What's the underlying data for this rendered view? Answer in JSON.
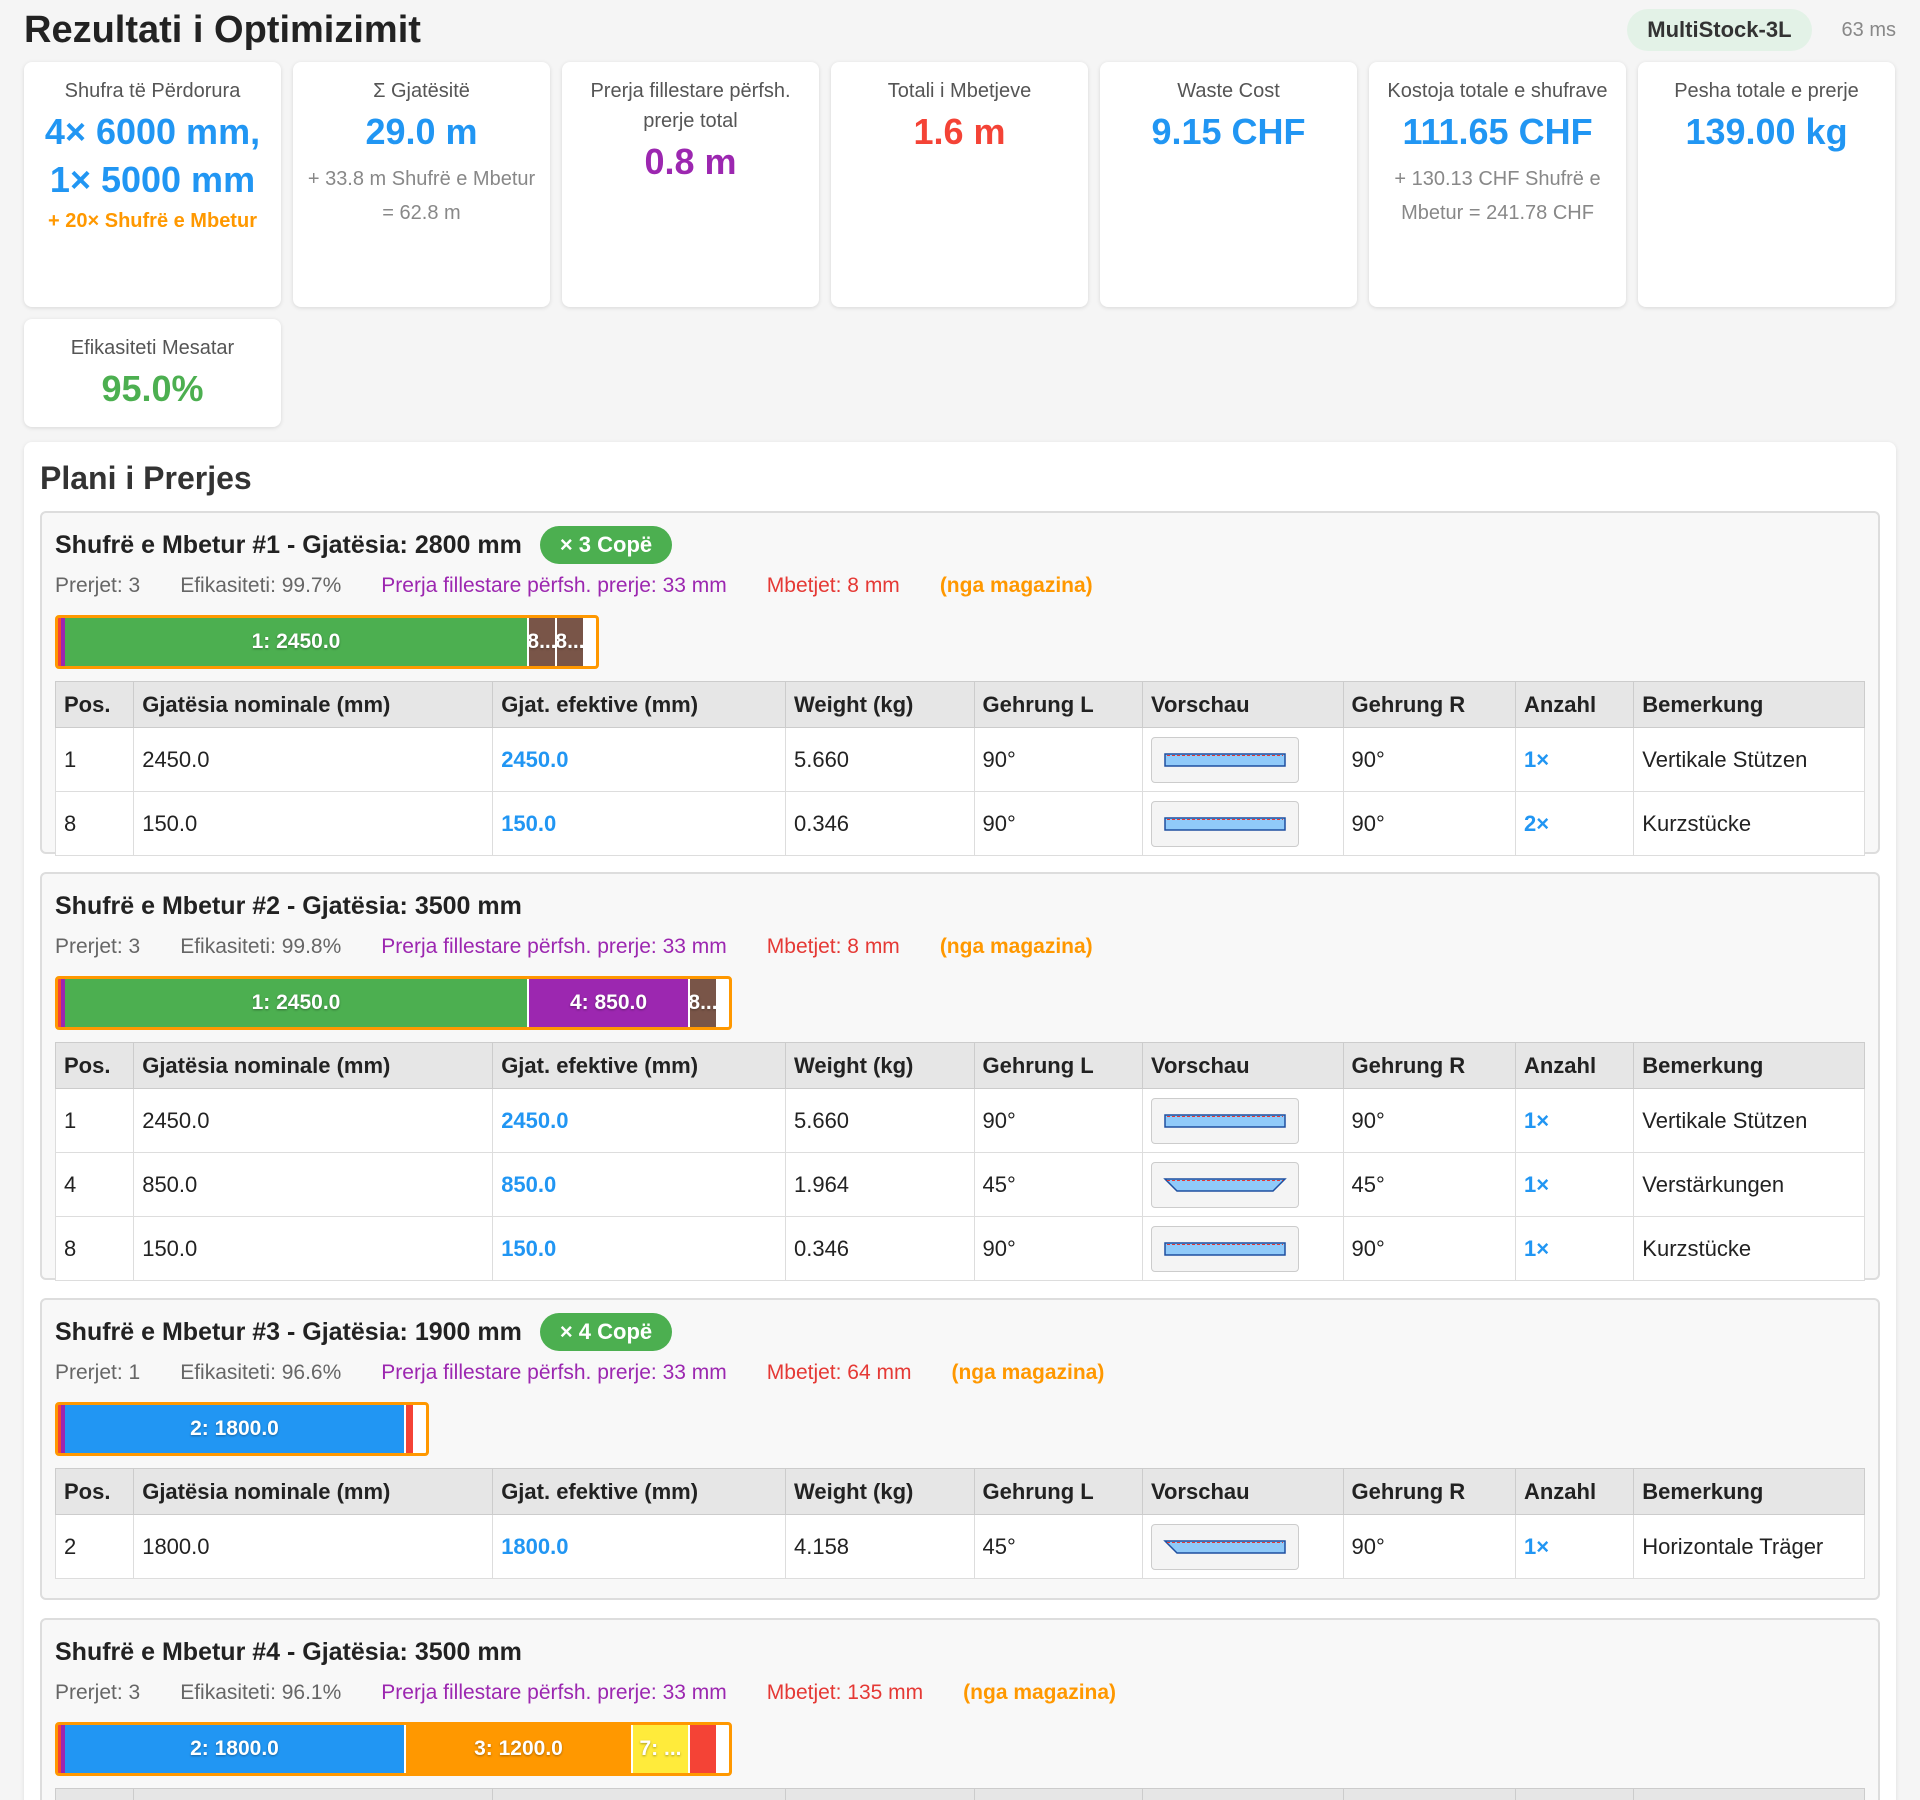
{
  "header": {
    "title": "Rezultati i Optimizimit",
    "algorithm": "MultiStock-3L",
    "time": "63 ms"
  },
  "summary": [
    {
      "label": "Shufra të Përdorura",
      "value_line1": "4× 6000 mm,",
      "value_line2": "1× 5000 mm",
      "extra": "+ 20× Shufrë e Mbetur",
      "color": "#2196f3"
    },
    {
      "label": "Σ Gjatësitë",
      "value": "29.0 m",
      "sub": "+ 33.8 m Shufrë e Mbetur = 62.8 m",
      "color": "#2196f3"
    },
    {
      "label": "Prerja fillestare përfsh. prerje total",
      "value": "0.8 m",
      "color": "#9c27b0"
    },
    {
      "label": "Totali i Mbetjeve",
      "value": "1.6 m",
      "color": "#f44336"
    },
    {
      "label": "Waste Cost",
      "value": "9.15 CHF",
      "color": "#2196f3"
    },
    {
      "label": "Kostoja totale e shufrave",
      "value": "111.65 CHF",
      "sub": "+ 130.13 CHF Shufrë e Mbetur = 241.78 CHF",
      "color": "#2196f3"
    },
    {
      "label": "Pesha totale e prerje",
      "value": "139.00 kg",
      "color": "#2196f3"
    },
    {
      "label": "Efikasiteti Mesatar",
      "value": "95.0%",
      "color": "#4caf50"
    }
  ],
  "plan": {
    "title": "Plani i Prerjes",
    "columns": [
      "Pos.",
      "Gjatësia nominale (mm)",
      "Gjat. efektive (mm)",
      "Weight (kg)",
      "Gehrung L",
      "Vorschau",
      "Gehrung R",
      "Anzahl",
      "Bemerkung"
    ],
    "bars": [
      {
        "title": "Shufrë e Mbetur #1 - Gjatësia: 2800 mm",
        "copies": "× 3 Copë",
        "cuts": "Prerjet: 3",
        "efficiency": "Efikasiteti: 99.7%",
        "kerf": "Prerja fillestare përfsh. prerje: 33 mm",
        "waste": "Mbetjet: 8 mm",
        "source": "(nga magazina)",
        "segments": [
          {
            "label": "1: 2450.0",
            "length": 2450,
            "color": "#4caf50"
          },
          {
            "label": "8...",
            "length": 150,
            "color": "#795548"
          },
          {
            "label": "8...",
            "length": 150,
            "color": "#795548"
          }
        ],
        "rows": [
          {
            "pos": "1",
            "nominal": "2450.0",
            "effective": "2450.0",
            "weight": "5.660",
            "gl": "90°",
            "gr": "90°",
            "count": "1×",
            "note": "Vertikale Stützen",
            "shape": "rect"
          },
          {
            "pos": "8",
            "nominal": "150.0",
            "effective": "150.0",
            "weight": "0.346",
            "gl": "90°",
            "gr": "90°",
            "count": "2×",
            "note": "Kurzstücke",
            "shape": "rect"
          }
        ]
      },
      {
        "title": "Shufrë e Mbetur #2 - Gjatësia: 3500 mm",
        "copies": "",
        "cuts": "Prerjet: 3",
        "efficiency": "Efikasiteti: 99.8%",
        "kerf": "Prerja fillestare përfsh. prerje: 33 mm",
        "waste": "Mbetjet: 8 mm",
        "source": "(nga magazina)",
        "segments": [
          {
            "label": "1: 2450.0",
            "length": 2450,
            "color": "#4caf50"
          },
          {
            "label": "4: 850.0",
            "length": 850,
            "color": "#9c27b0"
          },
          {
            "label": "8...",
            "length": 150,
            "color": "#795548"
          }
        ],
        "rows": [
          {
            "pos": "1",
            "nominal": "2450.0",
            "effective": "2450.0",
            "weight": "5.660",
            "gl": "90°",
            "gr": "90°",
            "count": "1×",
            "note": "Vertikale Stützen",
            "shape": "rect"
          },
          {
            "pos": "4",
            "nominal": "850.0",
            "effective": "850.0",
            "weight": "1.964",
            "gl": "45°",
            "gr": "45°",
            "count": "1×",
            "note": "Verstärkungen",
            "shape": "trap"
          },
          {
            "pos": "8",
            "nominal": "150.0",
            "effective": "150.0",
            "weight": "0.346",
            "gl": "90°",
            "gr": "90°",
            "count": "1×",
            "note": "Kurzstücke",
            "shape": "rect"
          }
        ]
      },
      {
        "title": "Shufrë e Mbetur #3 - Gjatësia: 1900 mm",
        "copies": "× 4 Copë",
        "cuts": "Prerjet: 1",
        "efficiency": "Efikasiteti: 96.6%",
        "kerf": "Prerja fillestare përfsh. prerje: 33 mm",
        "waste": "Mbetjet: 64 mm",
        "source": "(nga magazina)",
        "segments": [
          {
            "label": "2: 1800.0",
            "length": 1800,
            "color": "#2196f3"
          }
        ],
        "rows": [
          {
            "pos": "2",
            "nominal": "1800.0",
            "effective": "1800.0",
            "weight": "4.158",
            "gl": "45°",
            "gr": "90°",
            "count": "1×",
            "note": "Horizontale Träger",
            "shape": "left"
          }
        ]
      },
      {
        "title": "Shufrë e Mbetur #4 - Gjatësia: 3500 mm",
        "copies": "",
        "cuts": "Prerjet: 3",
        "efficiency": "Efikasiteti: 96.1%",
        "kerf": "Prerja fillestare përfsh. prerje: 33 mm",
        "waste": "Mbetjet: 135 mm",
        "source": "(nga magazina)",
        "segments": [
          {
            "label": "2: 1800.0",
            "length": 1800,
            "color": "#2196f3"
          },
          {
            "label": "3: 1200.0",
            "length": 1200,
            "color": "#ff9800"
          },
          {
            "label": "7: ...",
            "length": 300,
            "color": "#ffeb3b"
          }
        ],
        "rows": []
      }
    ]
  }
}
